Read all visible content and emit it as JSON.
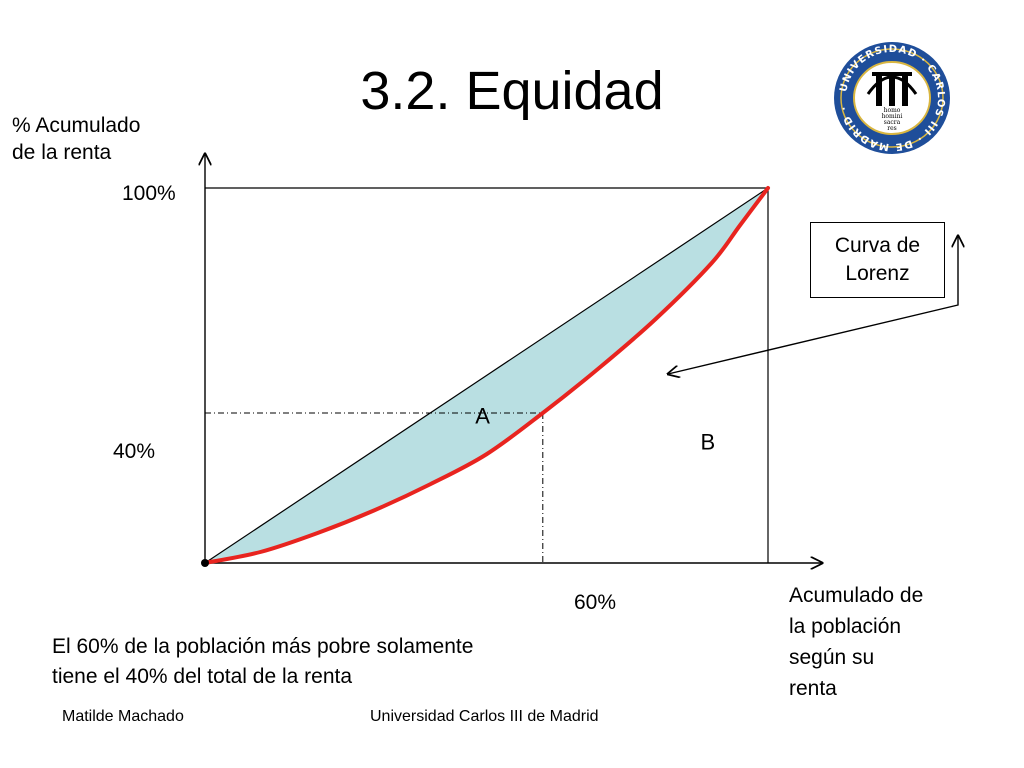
{
  "title": "3.2. Equidad",
  "axes": {
    "y_label_lines": [
      "% Acumulado",
      "de la renta"
    ],
    "x_label_lines": [
      "Acumulado de",
      "la población",
      "según su",
      "renta"
    ],
    "y_ticks": [
      "100%",
      "40%"
    ],
    "x_ticks": [
      "60%"
    ]
  },
  "regions": {
    "a": "A",
    "b": "B"
  },
  "callout": {
    "lines": [
      "Curva de",
      "Lorenz"
    ]
  },
  "note_lines": [
    "El 60% de la población más pobre solamente",
    "tiene el 40% del total de la renta"
  ],
  "footer": {
    "left": "Matilde Machado",
    "right": "Universidad Carlos III de Madrid"
  },
  "logo": {
    "outer_text": "UNIVERSIDAD CARLOS III DE MADRID",
    "motto_lines": [
      "homo",
      "homini",
      "sacra",
      "res"
    ]
  },
  "colors": {
    "lorenz": "#e8241f",
    "area_a": "#b9dfe2",
    "logo_blue": "#1f4e9a",
    "logo_gold": "#d9b640"
  },
  "chart_data": {
    "type": "line",
    "x": [
      0,
      10,
      20,
      30,
      40,
      50,
      60,
      70,
      80,
      90,
      95,
      100
    ],
    "series": [
      {
        "values": [
          0,
          3,
          8,
          14,
          21,
          29,
          40,
          52,
          65,
          80,
          90,
          100
        ]
      },
      {
        "values": [
          0,
          100
        ],
        "x": [
          0,
          100
        ]
      }
    ],
    "guides": {
      "x": 60,
      "y": 40
    },
    "xlim": [
      0,
      100
    ],
    "ylim": [
      0,
      100
    ],
    "grid": false
  }
}
